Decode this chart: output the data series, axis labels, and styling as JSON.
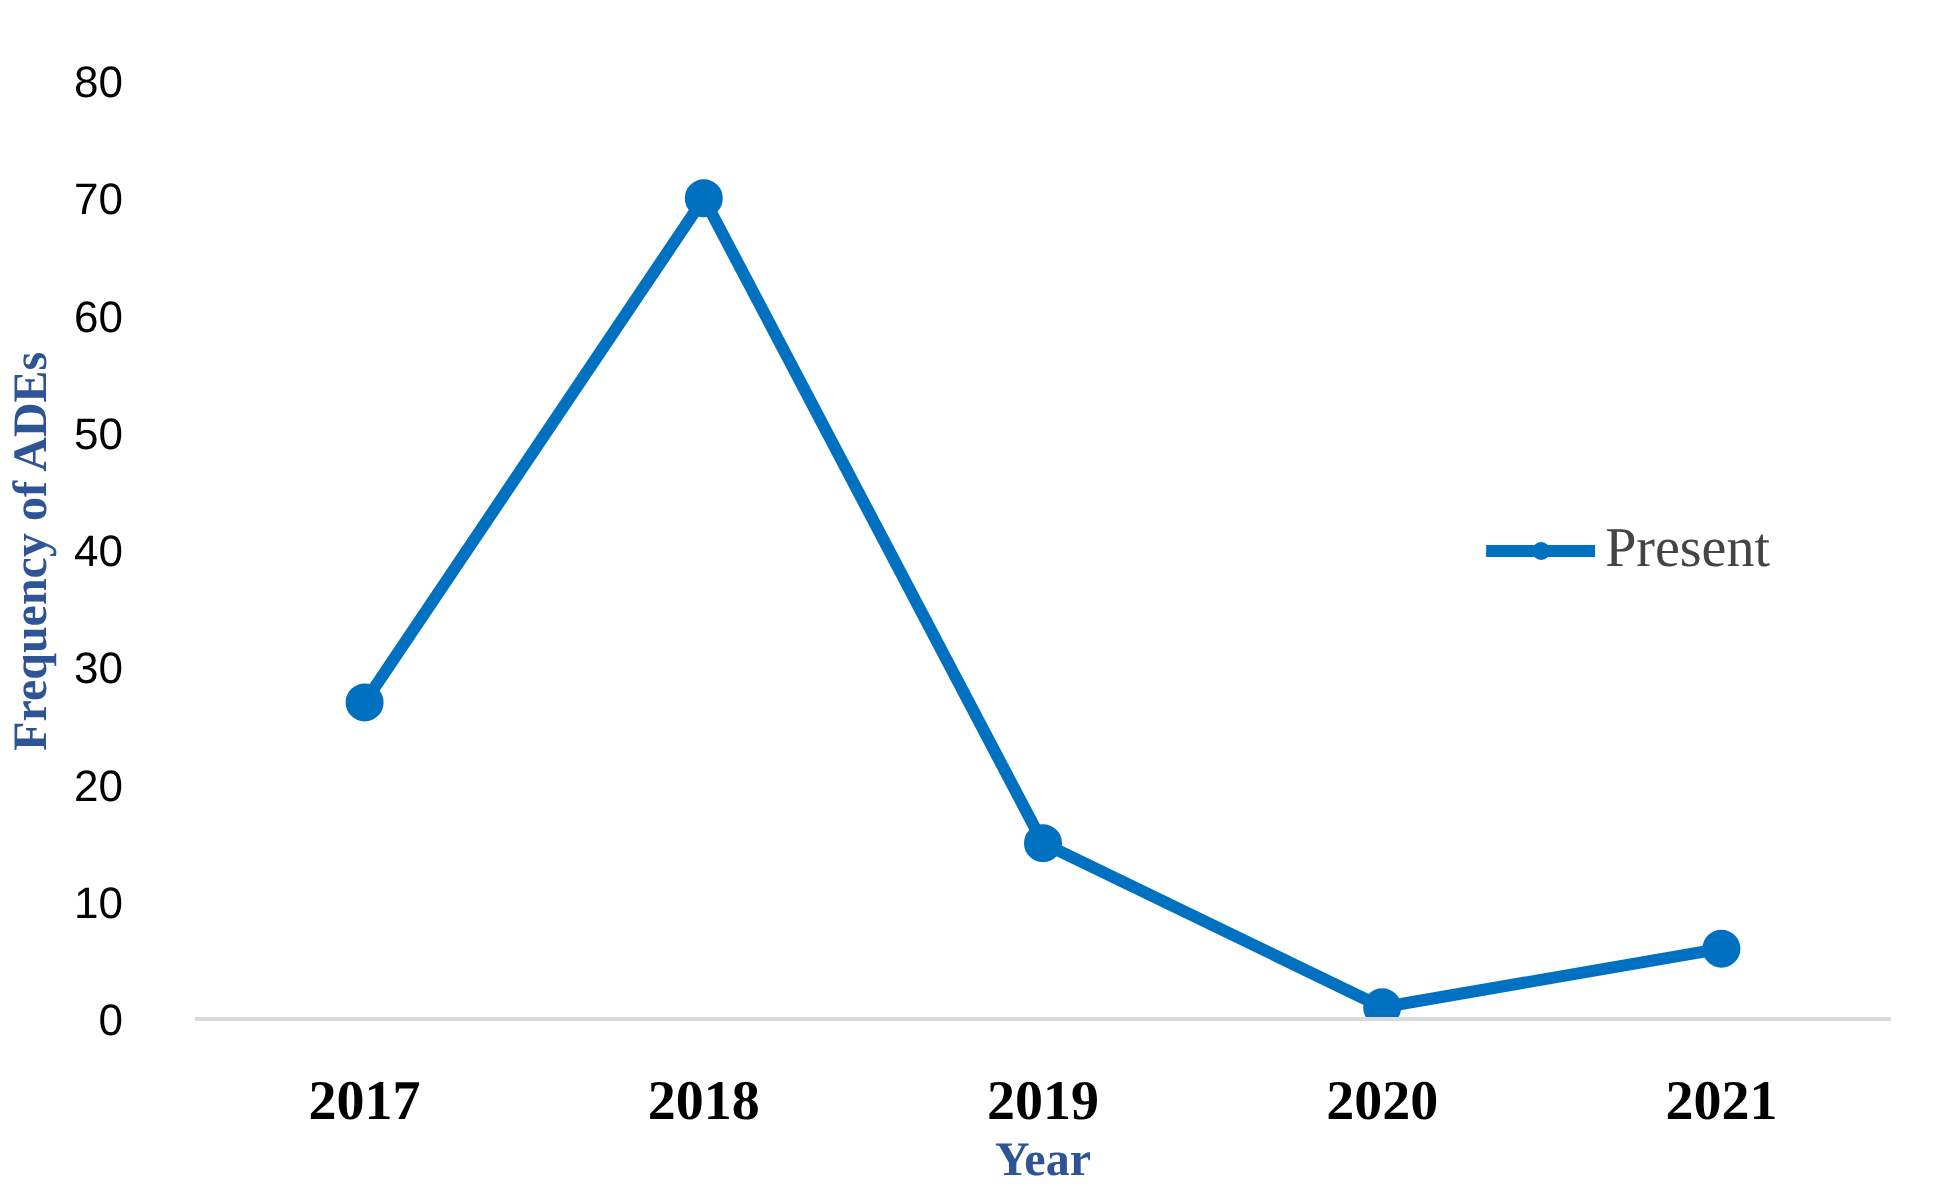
{
  "chart_data": {
    "type": "line",
    "xlabel": "Year",
    "ylabel": "Frequency of ADEs",
    "categories": [
      "2017",
      "2018",
      "2019",
      "2020",
      "2021"
    ],
    "series": [
      {
        "name": "Present",
        "color": "#0070c0",
        "values": [
          27,
          70,
          15,
          1,
          6
        ]
      }
    ],
    "ylim": [
      0,
      80
    ],
    "yticks": [
      0,
      10,
      20,
      30,
      40,
      50,
      60,
      70,
      80
    ],
    "grid": false,
    "legend": "right",
    "marker": "circle",
    "line_style": "solid"
  }
}
